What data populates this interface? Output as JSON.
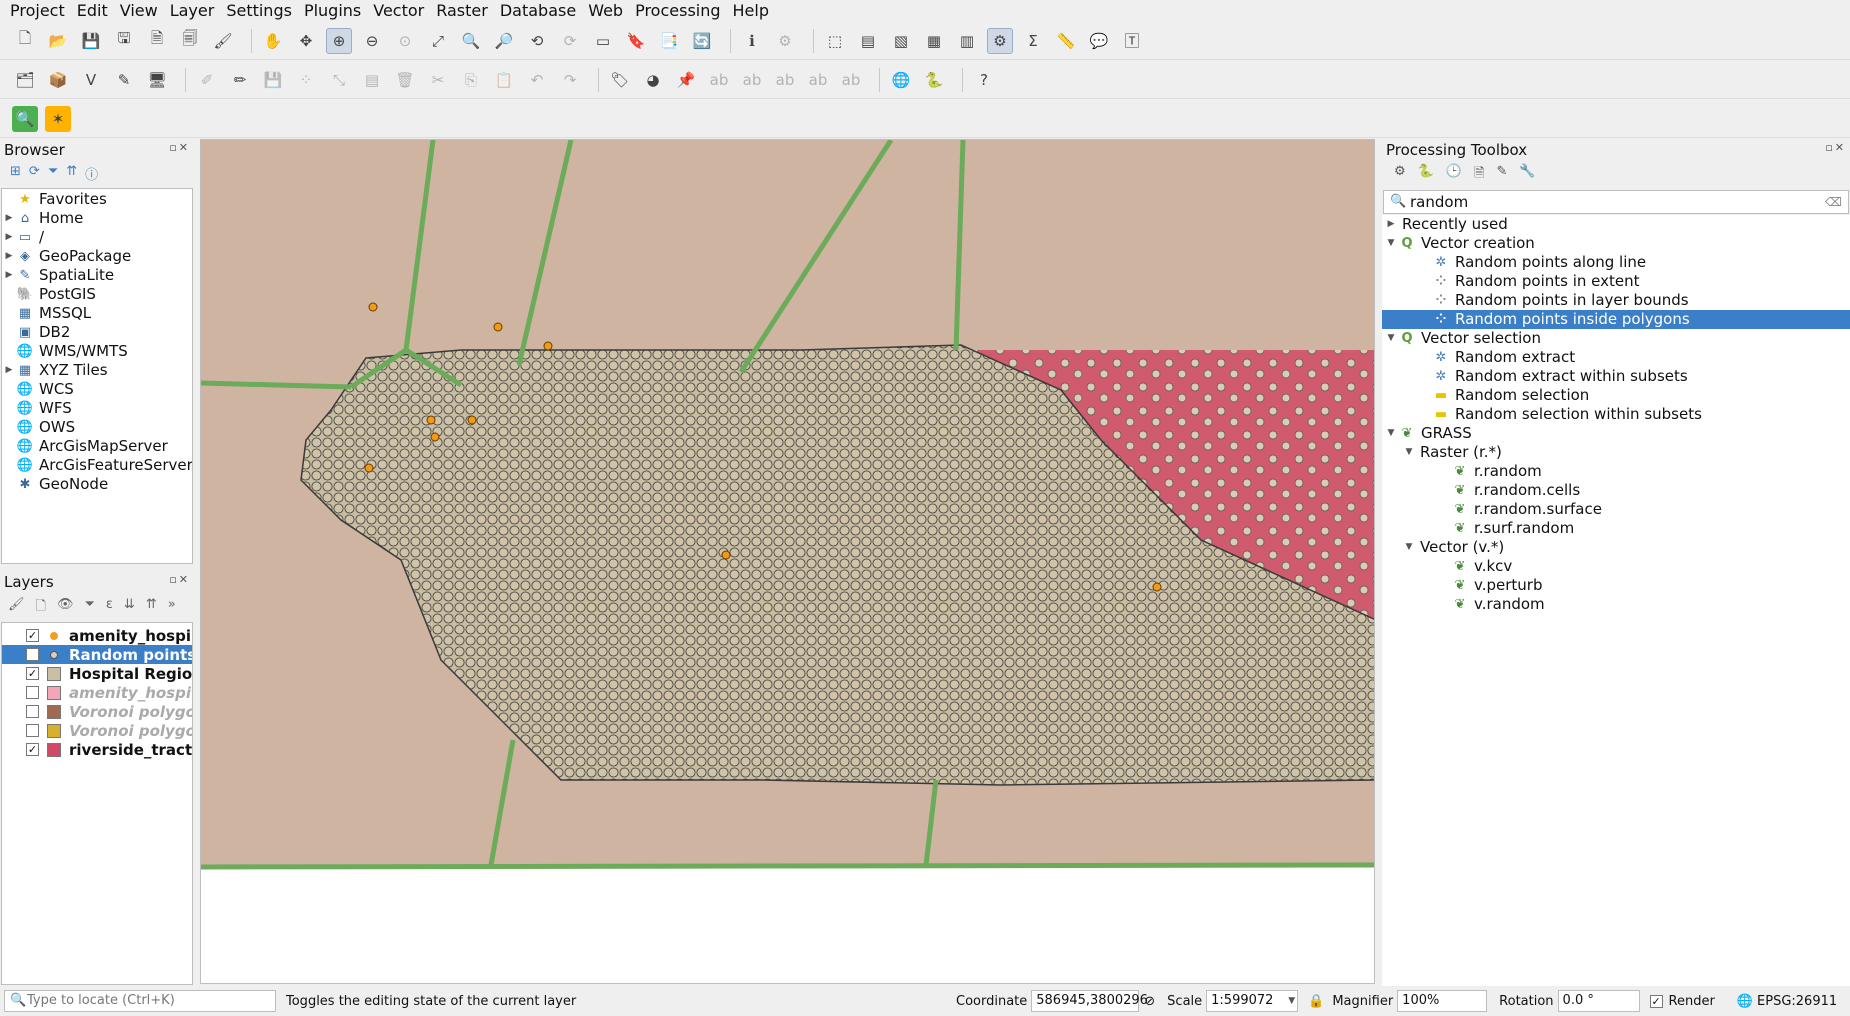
{
  "menu": [
    "Project",
    "Edit",
    "View",
    "Layer",
    "Settings",
    "Plugins",
    "Vector",
    "Raster",
    "Database",
    "Web",
    "Processing",
    "Help"
  ],
  "browser": {
    "title": "Browser",
    "items": [
      {
        "label": "Favorites",
        "icon": "star-icon",
        "expandable": false
      },
      {
        "label": "Home",
        "icon": "home-icon",
        "expandable": true
      },
      {
        "label": "/",
        "icon": "folder-icon",
        "expandable": true
      },
      {
        "label": "GeoPackage",
        "icon": "geopackage-icon",
        "expandable": true
      },
      {
        "label": "SpatiaLite",
        "icon": "spatialite-icon",
        "expandable": true
      },
      {
        "label": "PostGIS",
        "icon": "postgis-icon",
        "expandable": false
      },
      {
        "label": "MSSQL",
        "icon": "mssql-icon",
        "expandable": false
      },
      {
        "label": "DB2",
        "icon": "db2-icon",
        "expandable": false
      },
      {
        "label": "WMS/WMTS",
        "icon": "globe-icon",
        "expandable": false
      },
      {
        "label": "XYZ Tiles",
        "icon": "tiles-icon",
        "expandable": true
      },
      {
        "label": "WCS",
        "icon": "globe-icon",
        "expandable": false
      },
      {
        "label": "WFS",
        "icon": "globe-icon",
        "expandable": false
      },
      {
        "label": "OWS",
        "icon": "globe-icon",
        "expandable": false
      },
      {
        "label": "ArcGisMapServer",
        "icon": "globe-icon",
        "expandable": false
      },
      {
        "label": "ArcGisFeatureServer",
        "icon": "globe-icon",
        "expandable": false
      },
      {
        "label": "GeoNode",
        "icon": "geonode-icon",
        "expandable": false
      }
    ]
  },
  "layers": {
    "title": "Layers",
    "items": [
      {
        "label": "amenity_hospi...",
        "checked": true,
        "bold": true,
        "italic": false,
        "symbol": "#f0a020",
        "selected": false
      },
      {
        "label": "Random points",
        "checked": true,
        "bold": true,
        "italic": false,
        "symbol": "#d8cfb8",
        "selected": true
      },
      {
        "label": "Hospital Regions",
        "checked": true,
        "bold": true,
        "italic": false,
        "symbol": "#c8bfa4",
        "selected": false
      },
      {
        "label": "amenity_hospit",
        "checked": false,
        "bold": true,
        "italic": true,
        "symbol": "#f2a7b8",
        "selected": false
      },
      {
        "label": "Voronoi polygo",
        "checked": false,
        "bold": true,
        "italic": true,
        "symbol": "#a06a50",
        "selected": false
      },
      {
        "label": "Voronoi polygo",
        "checked": false,
        "bold": true,
        "italic": true,
        "symbol": "#d8b030",
        "selected": false
      },
      {
        "label": "riverside_tracts",
        "checked": true,
        "bold": true,
        "italic": false,
        "symbol": "#d04a68",
        "selected": false
      }
    ]
  },
  "toolbox": {
    "title": "Processing Toolbox",
    "search_value": "random",
    "rows": [
      {
        "label": "Recently used",
        "level": 0,
        "arrow": "▶",
        "icon": ""
      },
      {
        "label": "Vector creation",
        "level": 0,
        "arrow": "▼",
        "icon": "qgis-icon"
      },
      {
        "label": "Random points along line",
        "level": 1,
        "arrow": "",
        "icon": "gear-icon"
      },
      {
        "label": "Random points in extent",
        "level": 1,
        "arrow": "",
        "icon": "dots-icon"
      },
      {
        "label": "Random points in layer bounds",
        "level": 1,
        "arrow": "",
        "icon": "dots-icon"
      },
      {
        "label": "Random points inside polygons",
        "level": 1,
        "arrow": "",
        "icon": "dots-icon",
        "selected": true
      },
      {
        "label": "Vector selection",
        "level": 0,
        "arrow": "▼",
        "icon": "qgis-icon"
      },
      {
        "label": "Random extract",
        "level": 1,
        "arrow": "",
        "icon": "gear-icon"
      },
      {
        "label": "Random extract within subsets",
        "level": 1,
        "arrow": "",
        "icon": "gear-icon"
      },
      {
        "label": "Random selection",
        "level": 1,
        "arrow": "",
        "icon": "selection-icon"
      },
      {
        "label": "Random selection within subsets",
        "level": 1,
        "arrow": "",
        "icon": "selection-icon"
      },
      {
        "label": "GRASS",
        "level": 0,
        "arrow": "▼",
        "icon": "grass-icon"
      },
      {
        "label": "Raster (r.*)",
        "level": 1,
        "arrow": "▼",
        "icon": ""
      },
      {
        "label": "r.random",
        "level": 2,
        "arrow": "",
        "icon": "grass-icon"
      },
      {
        "label": "r.random.cells",
        "level": 2,
        "arrow": "",
        "icon": "grass-icon"
      },
      {
        "label": "r.random.surface",
        "level": 2,
        "arrow": "",
        "icon": "grass-icon"
      },
      {
        "label": "r.surf.random",
        "level": 2,
        "arrow": "",
        "icon": "grass-icon"
      },
      {
        "label": "Vector (v.*)",
        "level": 1,
        "arrow": "▼",
        "icon": ""
      },
      {
        "label": "v.kcv",
        "level": 2,
        "arrow": "",
        "icon": "grass-icon"
      },
      {
        "label": "v.perturb",
        "level": 2,
        "arrow": "",
        "icon": "grass-icon"
      },
      {
        "label": "v.random",
        "level": 2,
        "arrow": "",
        "icon": "grass-icon"
      }
    ]
  },
  "status": {
    "locate_placeholder": "Type to locate (Ctrl+K)",
    "message": "Toggles the editing state of the current layer",
    "coordinate_label": "Coordinate",
    "coordinate_value": "586945,3800296",
    "scale_label": "Scale",
    "scale_value": "1:599072",
    "magnifier_label": "Magnifier",
    "magnifier_value": "100%",
    "rotation_label": "Rotation",
    "rotation_value": "0.0 °",
    "render_label": "Render",
    "crs": "EPSG:26911"
  },
  "colors": {
    "map_bg": "#cfb4a2",
    "tracts": "#d05a6e",
    "points": "#c9bca0",
    "voronoi_edges": "#6bab5a",
    "hospital": "#f09a18",
    "selection": "#3a7fc8"
  }
}
